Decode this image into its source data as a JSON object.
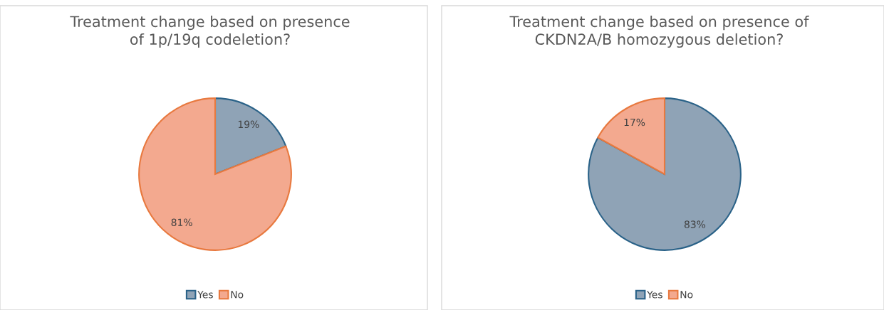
{
  "chart_data": [
    {
      "type": "pie",
      "title": "Treatment change based on presence\nof 1p/19q codeletion?",
      "categories": [
        "Yes",
        "No"
      ],
      "values": [
        19,
        81
      ],
      "value_labels": [
        "19%",
        "81%"
      ],
      "colors": [
        "#8fa3b6",
        "#f3a98f"
      ],
      "legend": "bottom"
    },
    {
      "type": "pie",
      "title": "Treatment change based on presence of\nCKDN2A/B homozygous deletion?",
      "categories": [
        "Yes",
        "No"
      ],
      "values": [
        83,
        17
      ],
      "value_labels": [
        "83%",
        "17%"
      ],
      "colors": [
        "#8fa3b6",
        "#f3a98f"
      ],
      "legend": "bottom"
    }
  ]
}
